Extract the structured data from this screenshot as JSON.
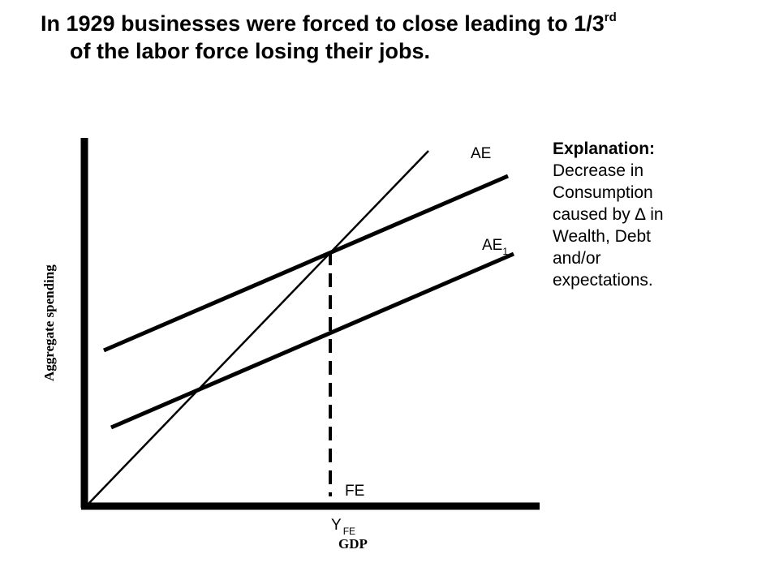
{
  "title": {
    "line1_prefix": "In 1929 businesses were forced to close leading to 1/3",
    "line1_sup": "rd",
    "line2": "of the labor force losing their jobs."
  },
  "explanation": {
    "heading": "Explanation:",
    "lines": [
      "Decrease in",
      "Consumption",
      "caused by ∆ in",
      "Wealth, Debt",
      "and/or",
      "expectations."
    ]
  },
  "diagram": {
    "y_axis_label": "Aggregate spending",
    "x_axis_label": "GDP",
    "curves": {
      "ae": "AE",
      "ae1_main": "AE",
      "ae1_sub": "1",
      "fe": "FE"
    },
    "yfe_main": "Y",
    "yfe_sub": "FE"
  }
}
